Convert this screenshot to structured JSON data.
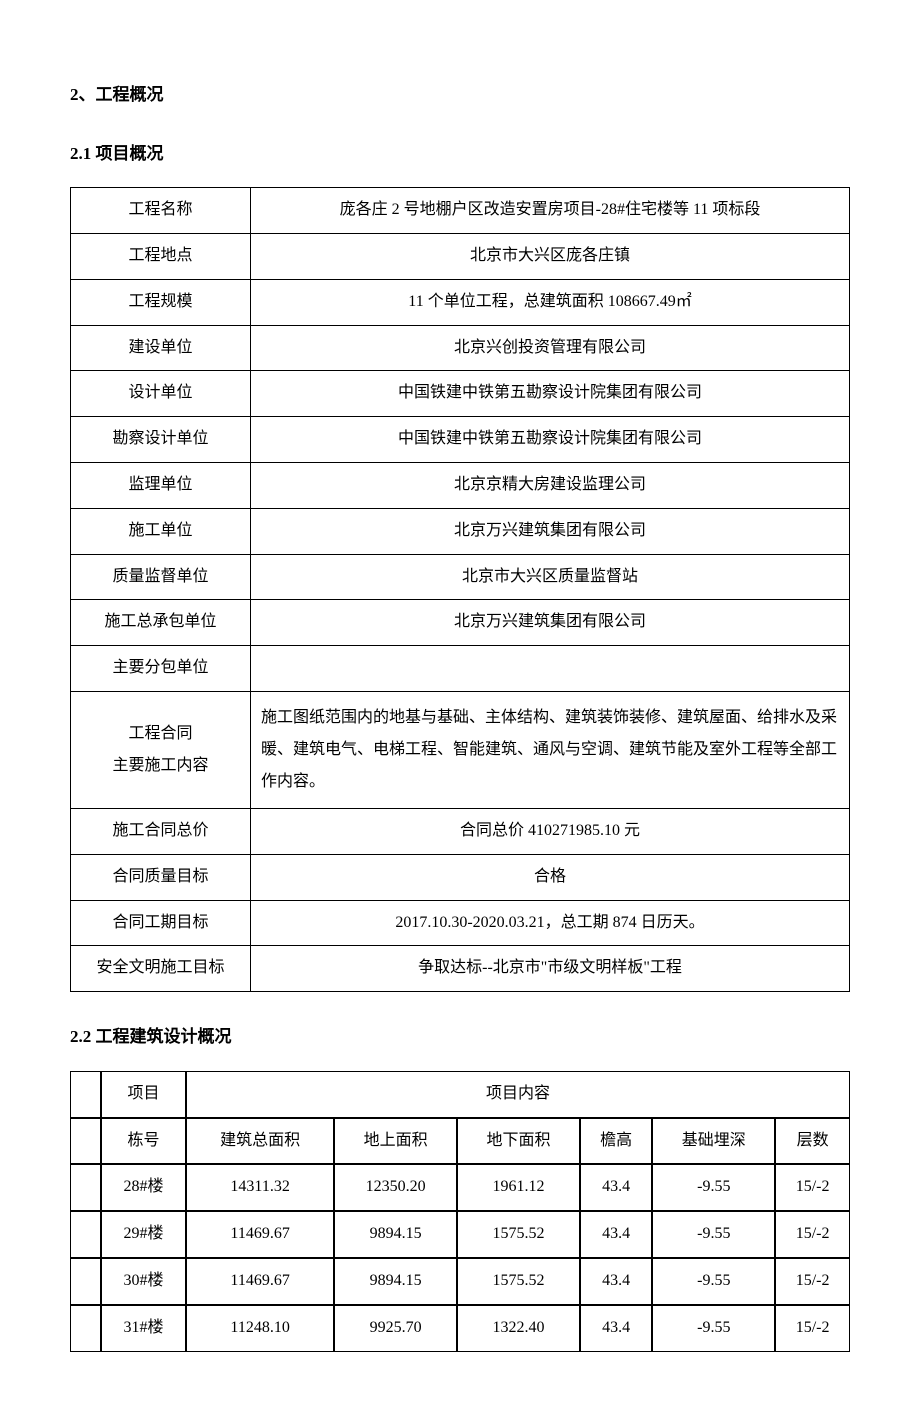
{
  "headings": {
    "h1": "2、工程概况",
    "h2_1": "2.1 项目概况",
    "h2_2": "2.2 工程建筑设计概况"
  },
  "table1": {
    "rows": [
      {
        "label": "工程名称",
        "value": "庞各庄 2 号地棚户区改造安置房项目-28#住宅楼等 11 项标段"
      },
      {
        "label": "工程地点",
        "value": "北京市大兴区庞各庄镇"
      },
      {
        "label": "工程规模",
        "value": "11 个单位工程，总建筑面积 108667.49㎡"
      },
      {
        "label": "建设单位",
        "value": "北京兴创投资管理有限公司"
      },
      {
        "label": "设计单位",
        "value": "中国铁建中铁第五勘察设计院集团有限公司"
      },
      {
        "label": "勘察设计单位",
        "value": "中国铁建中铁第五勘察设计院集团有限公司"
      },
      {
        "label": "监理单位",
        "value": "北京京精大房建设监理公司"
      },
      {
        "label": "施工单位",
        "value": "北京万兴建筑集团有限公司"
      },
      {
        "label": "质量监督单位",
        "value": "北京市大兴区质量监督站"
      },
      {
        "label": "施工总承包单位",
        "value": "北京万兴建筑集团有限公司"
      },
      {
        "label": "主要分包单位",
        "value": ""
      }
    ],
    "contract_content": {
      "label_line1": "工程合同",
      "label_line2": "主要施工内容",
      "value": "施工图纸范围内的地基与基础、主体结构、建筑装饰装修、建筑屋面、给排水及采暖、建筑电气、电梯工程、智能建筑、通风与空调、建筑节能及室外工程等全部工作内容。"
    },
    "tail_rows": [
      {
        "label": "施工合同总价",
        "value": "合同总价 410271985.10 元"
      },
      {
        "label": "合同质量目标",
        "value": "合格"
      },
      {
        "label": "合同工期目标",
        "value": "2017.10.30-2020.03.21，总工期 874 日历天。"
      },
      {
        "label": "安全文明施工目标",
        "value": "争取达标--北京市\"市级文明样板\"工程"
      }
    ]
  },
  "table2": {
    "header": {
      "col1": "项目",
      "col2": "项目内容"
    },
    "sub_headers": [
      "栋号",
      "建筑总面积",
      "地上面积",
      "地下面积",
      "檐高",
      "基础埋深",
      "层数"
    ],
    "rows": [
      [
        "28#楼",
        "14311.32",
        "12350.20",
        "1961.12",
        "43.4",
        "-9.55",
        "15/-2"
      ],
      [
        "29#楼",
        "11469.67",
        "9894.15",
        "1575.52",
        "43.4",
        "-9.55",
        "15/-2"
      ],
      [
        "30#楼",
        "11469.67",
        "9894.15",
        "1575.52",
        "43.4",
        "-9.55",
        "15/-2"
      ],
      [
        "31#楼",
        "11248.10",
        "9925.70",
        "1322.40",
        "43.4",
        "-9.55",
        "15/-2"
      ]
    ]
  },
  "styling": {
    "background_color": "#ffffff",
    "text_color": "#000000",
    "border_color": "#000000",
    "font_family": "SimSun",
    "body_fontsize": 16,
    "heading_fontsize": 17
  }
}
